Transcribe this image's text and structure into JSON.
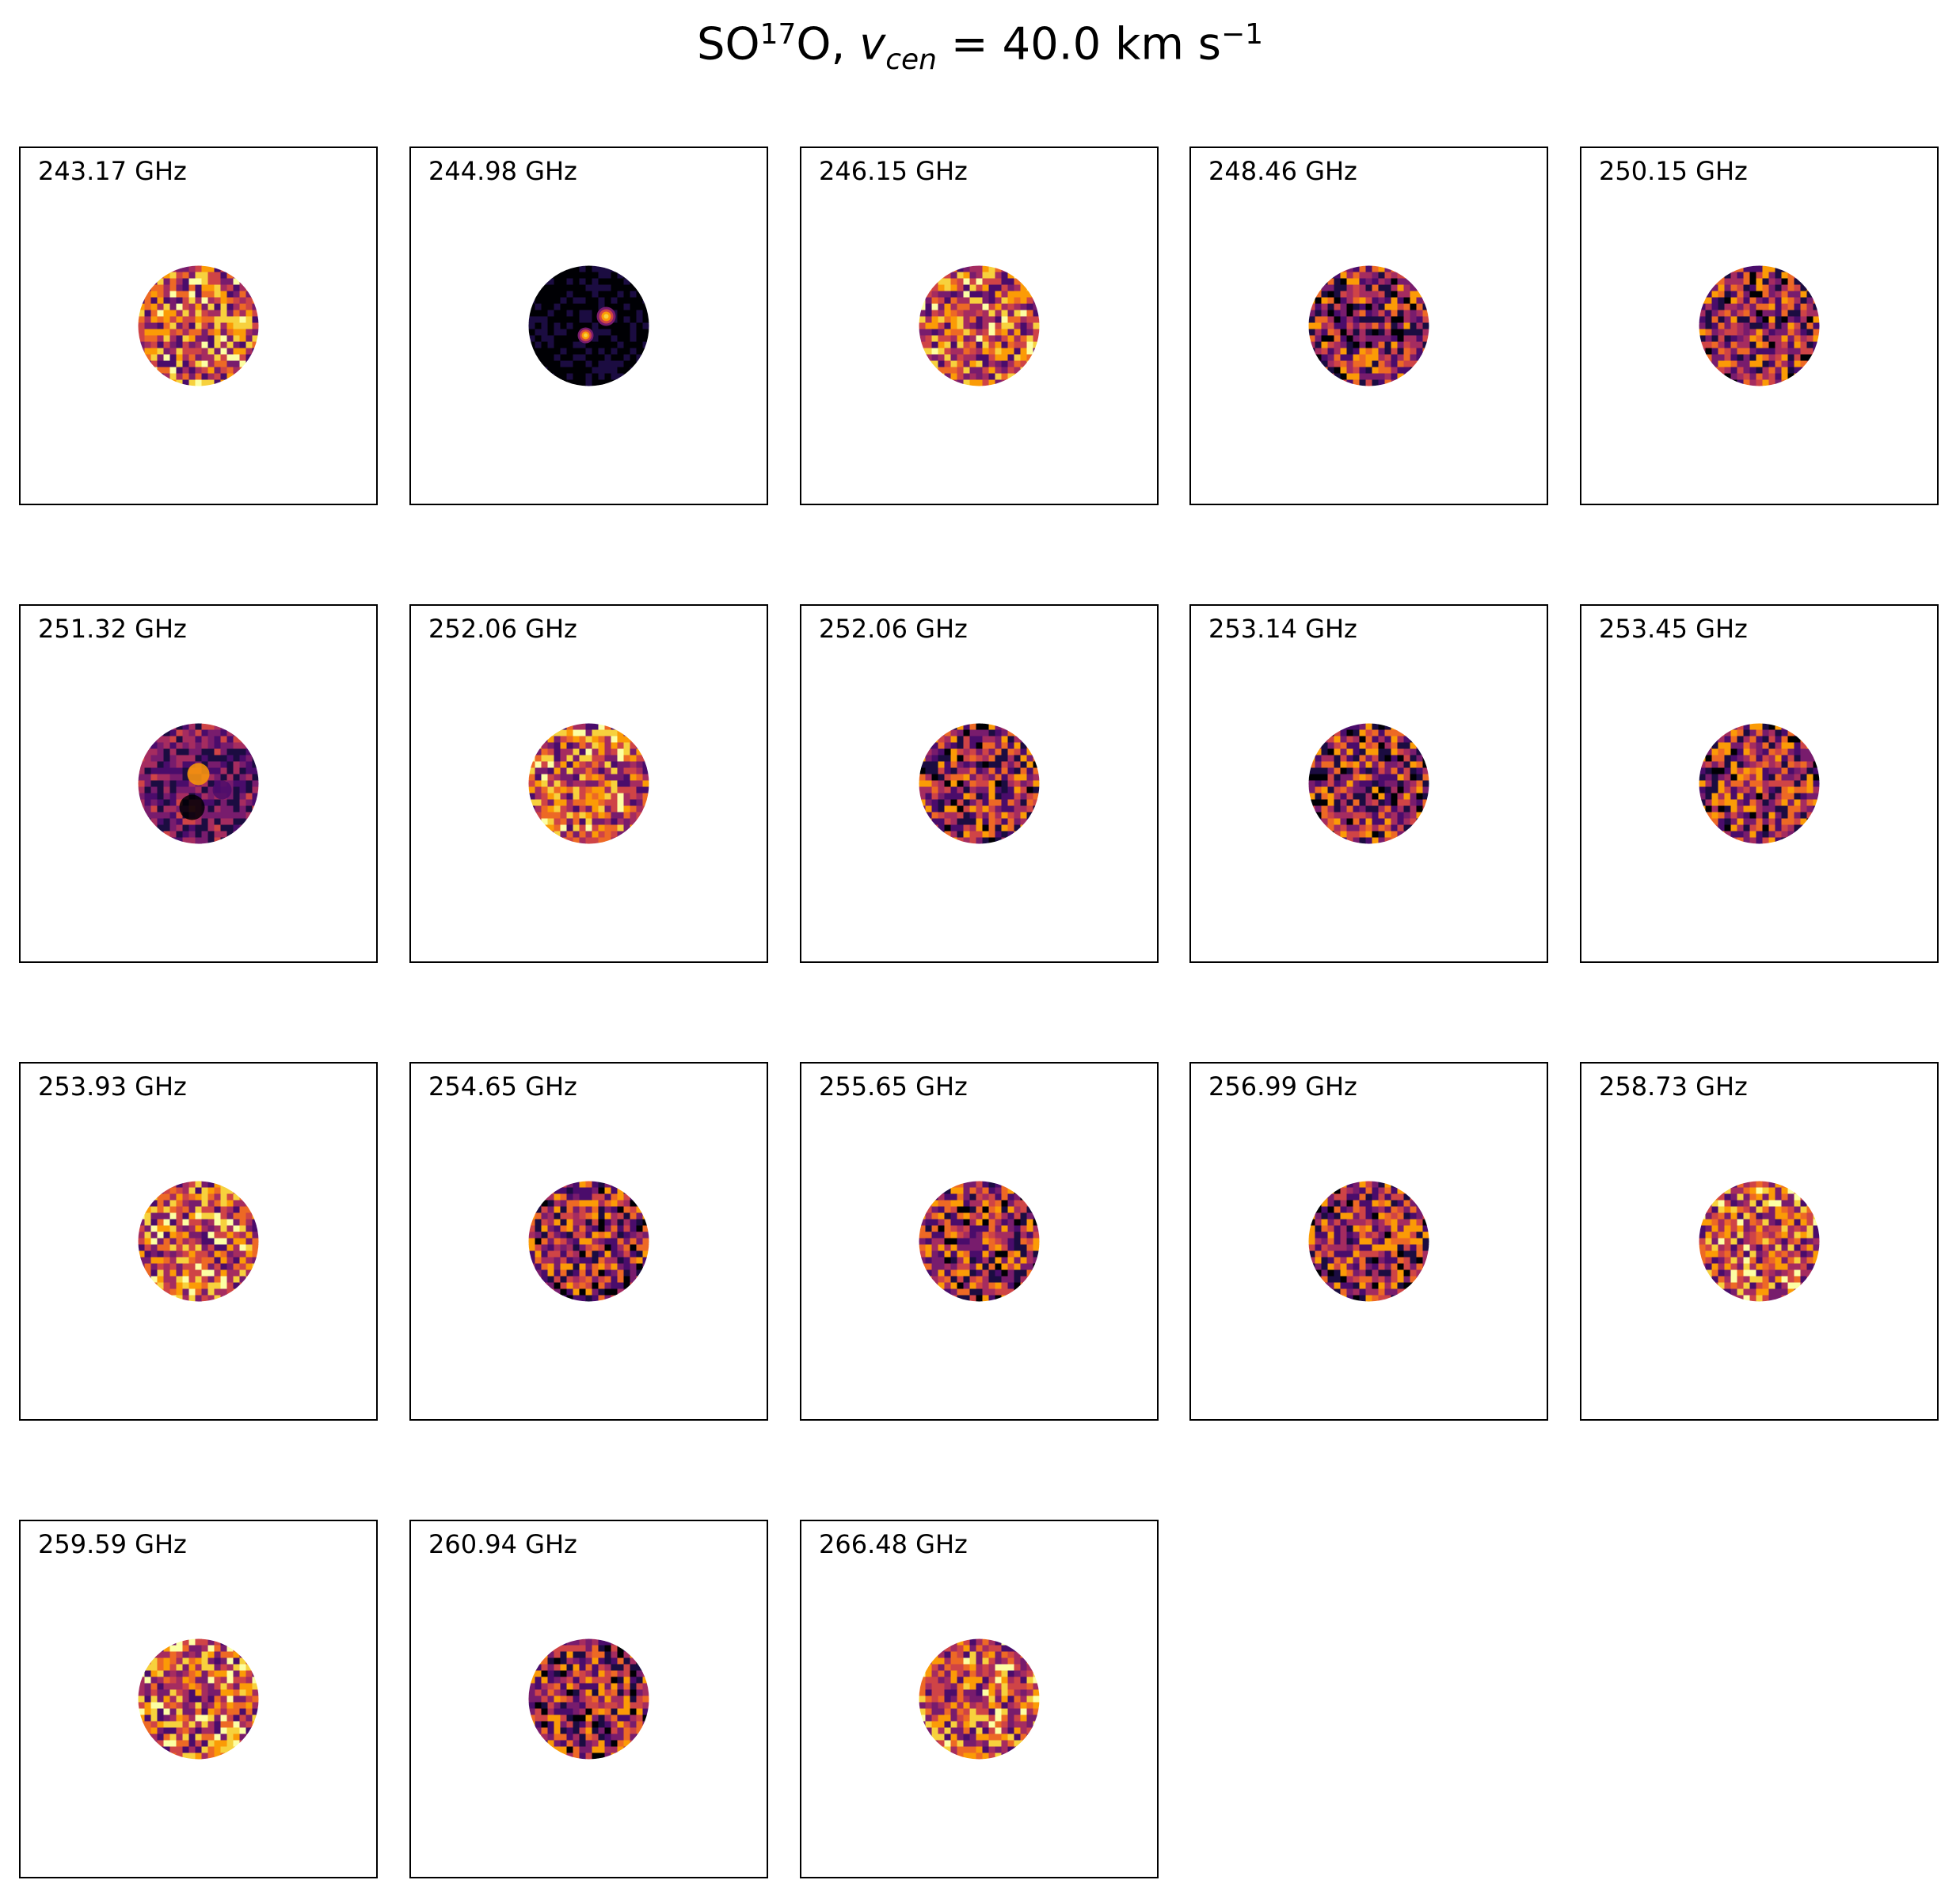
{
  "title": {
    "molecule": "SO",
    "isotope": "17",
    "molecule_tail": "O, ",
    "var": "v",
    "var_sub": "cen",
    "equals": " = ",
    "value": " 40.0 km s",
    "unit_exp": "−1"
  },
  "colormap": "inferno",
  "panels": [
    {
      "label": "243.17 GHz",
      "style": "noise-bright"
    },
    {
      "label": "244.98 GHz",
      "style": "dark-emission"
    },
    {
      "label": "246.15 GHz",
      "style": "noise-bright"
    },
    {
      "label": "248.46 GHz",
      "style": "noise-mid"
    },
    {
      "label": "250.15 GHz",
      "style": "noise-mid"
    },
    {
      "label": "251.32 GHz",
      "style": "faint-structure"
    },
    {
      "label": "252.06 GHz",
      "style": "noise-bright"
    },
    {
      "label": "252.06 GHz",
      "style": "noise-mid"
    },
    {
      "label": "253.14 GHz",
      "style": "noise-mid"
    },
    {
      "label": "253.45 GHz",
      "style": "noise-mid"
    },
    {
      "label": "253.93 GHz",
      "style": "noise-bright"
    },
    {
      "label": "254.65 GHz",
      "style": "noise-mid"
    },
    {
      "label": "255.65 GHz",
      "style": "noise-mid"
    },
    {
      "label": "256.99 GHz",
      "style": "noise-mid"
    },
    {
      "label": "258.73 GHz",
      "style": "noise-bright"
    },
    {
      "label": "259.59 GHz",
      "style": "noise-bright"
    },
    {
      "label": "260.94 GHz",
      "style": "noise-mid"
    },
    {
      "label": "266.48 GHz",
      "style": "noise-bright"
    }
  ]
}
